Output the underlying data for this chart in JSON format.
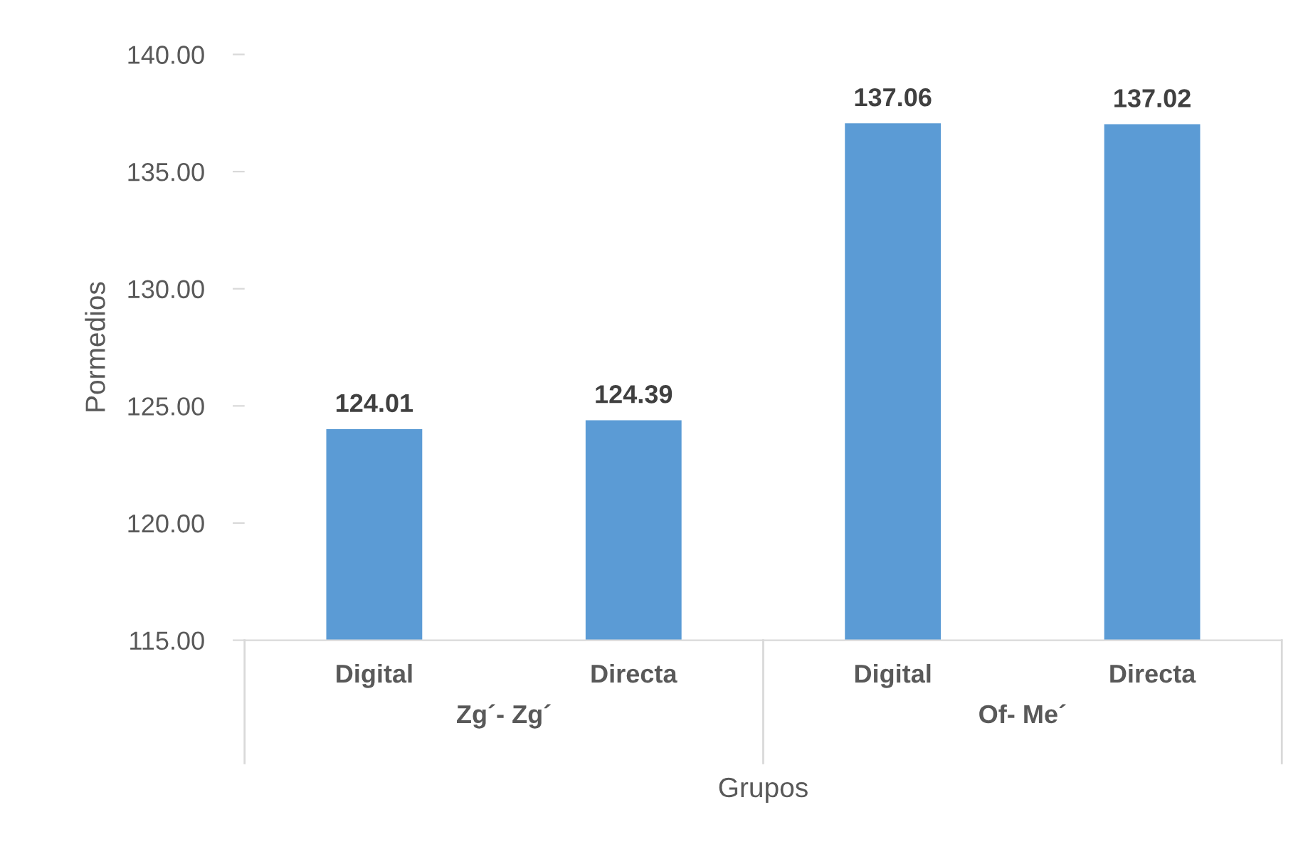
{
  "chart_data": {
    "type": "bar",
    "ylabel": "Pormedios",
    "xlabel": "Grupos",
    "categories": [
      "Digital",
      "Directa",
      "Digital",
      "Directa"
    ],
    "values": [
      124.01,
      124.39,
      137.06,
      137.02
    ],
    "color": "#5b9bd5",
    "ylim": [
      115,
      140
    ],
    "yticks": [
      {
        "value": 115,
        "label": "115.00"
      },
      {
        "value": 120,
        "label": "120.00"
      },
      {
        "value": 125,
        "label": "125.00"
      },
      {
        "value": 130,
        "label": "130.00"
      },
      {
        "value": 135,
        "label": "135.00"
      },
      {
        "value": 140,
        "label": "140.00"
      }
    ],
    "data_labels": true,
    "annotations": [
      "Zg´- Zg´",
      "Of- Me´"
    ]
  }
}
